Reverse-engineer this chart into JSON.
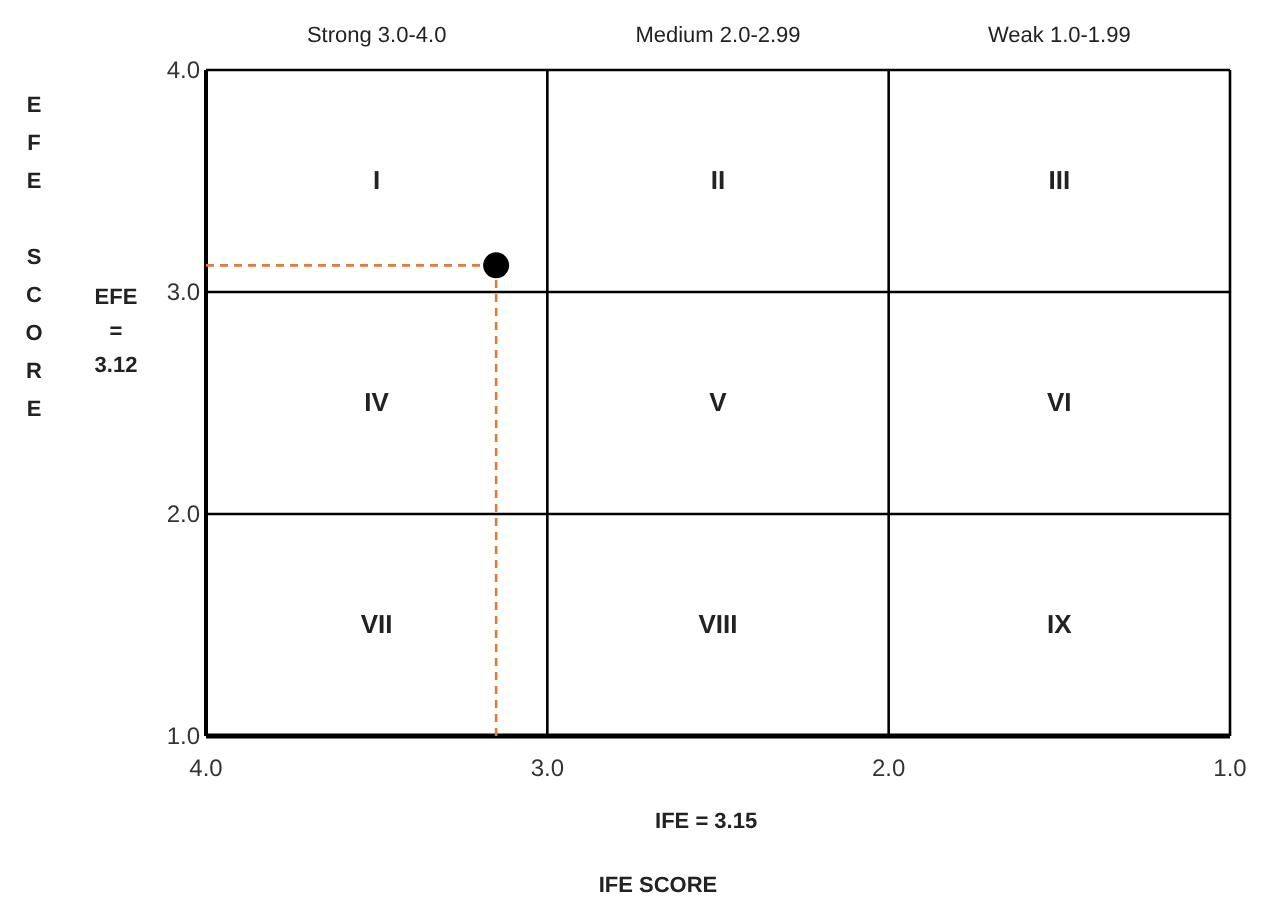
{
  "chart_data": {
    "type": "scatter",
    "xlabel": "IFE SCORE",
    "ylabel": "EFE SCORE",
    "x": [
      3.15
    ],
    "series": [
      {
        "color": "#000000",
        "values": [
          3.12
        ]
      }
    ],
    "xlim": [
      4,
      1
    ],
    "ylim": [
      1,
      4
    ],
    "xticks": [
      {
        "value": 4,
        "label": "4.0"
      },
      {
        "value": 3,
        "label": "3.0"
      },
      {
        "value": 2,
        "label": "2.0"
      },
      {
        "value": 1,
        "label": "1.0"
      }
    ],
    "yticks": [
      {
        "value": 1,
        "label": "1.0"
      },
      {
        "value": 2,
        "label": "2.0"
      },
      {
        "value": 3,
        "label": "3.0"
      },
      {
        "value": 4,
        "label": "4.0"
      }
    ],
    "grid": true,
    "marker": "circle",
    "ref_lines": [
      {
        "axis": "x",
        "value": 3.15,
        "color": "#e07b39",
        "line_style": "dashed"
      },
      {
        "axis": "y",
        "value": 3.12,
        "color": "#e07b39",
        "line_style": "dashed"
      }
    ],
    "annotations": [
      "Strong 3.0-4.0",
      "Medium 2.0-2.99",
      "Weak 1.0-1.99",
      "EFE = 3.12",
      "IFE = 3.15",
      "I",
      "II",
      "III",
      "IV",
      "V",
      "VI",
      "VII",
      "VIII",
      "IX"
    ]
  }
}
